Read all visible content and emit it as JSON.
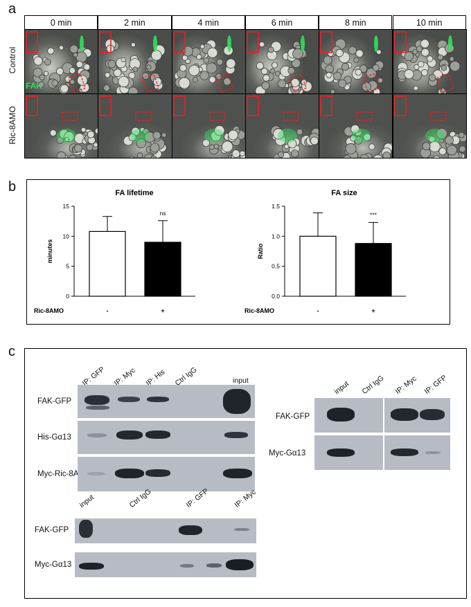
{
  "panels": {
    "a": "a",
    "b": "b",
    "c": "c"
  },
  "panel_a": {
    "timepoints": [
      "0 min",
      "2 min",
      "4 min",
      "6 min",
      "8 min",
      "10 min"
    ],
    "rows": [
      "Control",
      "Ric-8AMO"
    ],
    "overlay_label": "FAK",
    "colors": {
      "fak": "#2fe05a",
      "roi": "#e8202a"
    }
  },
  "panel_b": {
    "condition_label": "Ric-8AMO",
    "minus": "-",
    "plus": "+"
  },
  "chart_data": [
    {
      "type": "bar",
      "title": "FA lifetime",
      "ylabel": "minutes",
      "categories": [
        "-",
        "+"
      ],
      "values": [
        10.8,
        9.0
      ],
      "errors": [
        2.5,
        3.6
      ],
      "ylim": [
        0,
        15
      ],
      "yticks": [
        "0",
        "5",
        "10",
        "15"
      ],
      "annotation": "ns",
      "bar_colors": [
        "#ffffff",
        "#000000"
      ]
    },
    {
      "type": "bar",
      "title": "FA size",
      "ylabel": "Ratio",
      "categories": [
        "-",
        "+"
      ],
      "values": [
        1.0,
        0.88
      ],
      "errors": [
        0.39,
        0.35
      ],
      "ylim": [
        0,
        1.5
      ],
      "yticks": [
        "0.0",
        "0.5",
        "1.0",
        "1.5"
      ],
      "annotation": "***",
      "bar_colors": [
        "#ffffff",
        "#000000"
      ]
    }
  ],
  "panel_c": {
    "blot1": {
      "lanes": [
        "IP: GFP",
        "IP: Myc",
        "IP: His",
        "Ctrl IgG",
        "input"
      ],
      "rows": [
        "FAK-GFP",
        "His-Gα13",
        "Myc-Ric-8A"
      ]
    },
    "blot2": {
      "lanes": [
        "input",
        "Ctrl IgG",
        "IP: Myc",
        "IP: GFP"
      ],
      "rows": [
        "FAK-GFP",
        "Myc-Gα13"
      ]
    },
    "blot3": {
      "lanes": [
        "input",
        "Ctrl IgG",
        "IP: GFP",
        "IP: Myc"
      ],
      "rows": [
        "FAK-GFP",
        "Myc-Gα13"
      ]
    }
  }
}
